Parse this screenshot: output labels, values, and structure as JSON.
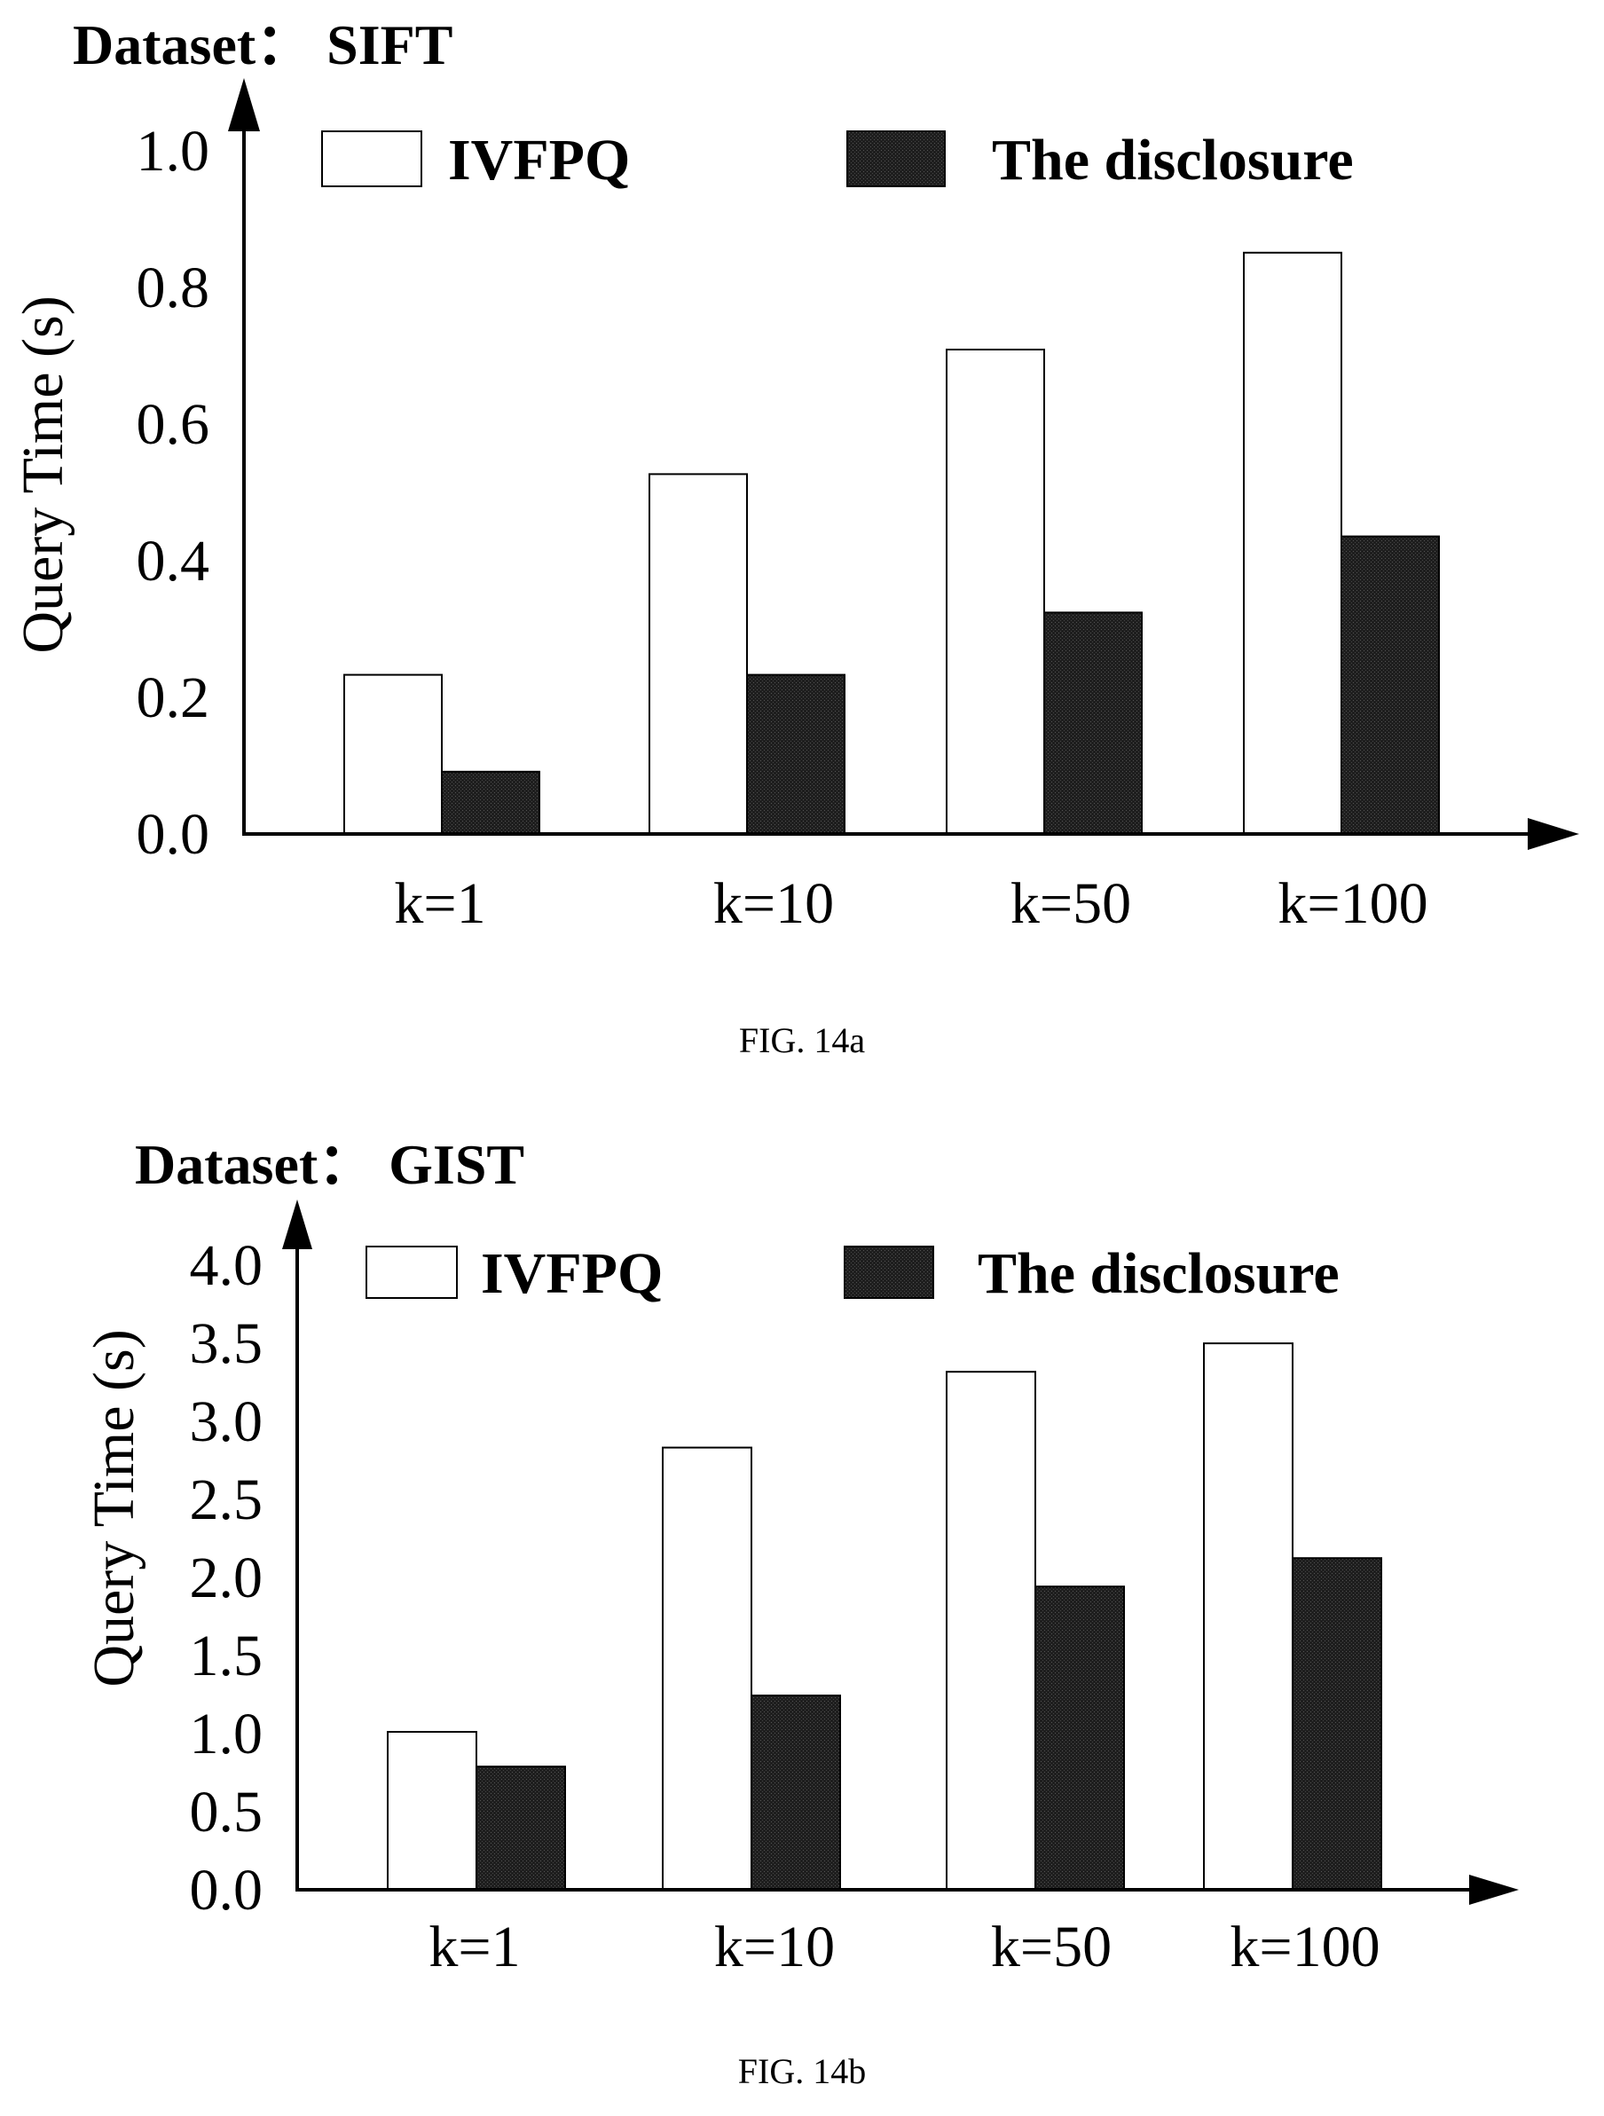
{
  "colors": {
    "ivfpq_fill": "#ffffff",
    "disclosure_fill": "#1e1e1e",
    "axis": "#000000"
  },
  "chart_data": [
    {
      "type": "bar",
      "title": "Dataset：  SIFT",
      "caption": "FIG. 14a",
      "ylabel": "Query Time (s)",
      "xlabel": "",
      "ylim": [
        0,
        1.0
      ],
      "yticks": [
        "0.0",
        "0.2",
        "0.4",
        "0.6",
        "0.8",
        "1.0"
      ],
      "categories": [
        "k=1",
        "k=10",
        "k=50",
        "k=100"
      ],
      "legend_position": "top",
      "series": [
        {
          "name": "IVFPQ",
          "values": [
            0.23,
            0.52,
            0.7,
            0.84
          ]
        },
        {
          "name": "The disclosure",
          "values": [
            0.09,
            0.23,
            0.32,
            0.43
          ]
        }
      ]
    },
    {
      "type": "bar",
      "title": "Dataset：  GIST",
      "caption": "FIG. 14b",
      "ylabel": "Query Time (s)",
      "xlabel": "",
      "ylim": [
        0,
        4.0
      ],
      "yticks": [
        "0.0",
        "0.5",
        "1.0",
        "1.5",
        "2.0",
        "2.5",
        "3.0",
        "3.5",
        "4.0"
      ],
      "categories": [
        "k=1",
        "k=10",
        "k=50",
        "k=100"
      ],
      "legend_position": "top",
      "series": [
        {
          "name": "IVFPQ",
          "values": [
            1.0,
            2.8,
            3.28,
            3.46
          ]
        },
        {
          "name": "The disclosure",
          "values": [
            0.78,
            1.23,
            1.92,
            2.1
          ]
        }
      ]
    }
  ]
}
